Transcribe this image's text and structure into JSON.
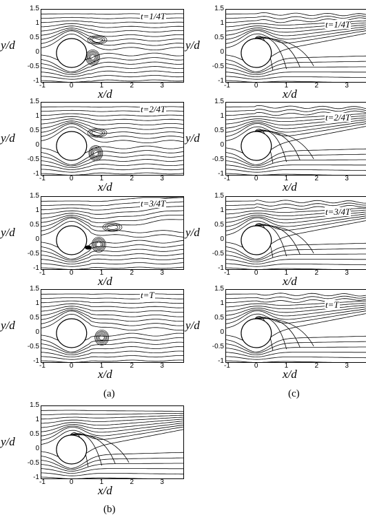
{
  "figure": {
    "axis_y_label": "y/d",
    "axis_x_label": "x/d",
    "y_ticks": [
      "1.5",
      "1",
      "0.5",
      "0",
      "-0.5",
      "-1"
    ],
    "x_ticks": [
      "-1",
      "0",
      "1",
      "2",
      "3"
    ],
    "captions": {
      "a": "(a)",
      "b": "(b)",
      "c": "(c)"
    },
    "time_labels": [
      "t=1/4T",
      "t=2/4T",
      "t=3/4T",
      "t=T"
    ]
  }
}
